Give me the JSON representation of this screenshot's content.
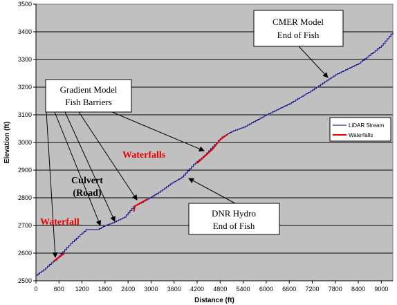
{
  "chart_data": {
    "type": "line",
    "xlabel": "Distance (ft)",
    "ylabel": "Elevation (ft)",
    "xlim": [
      0,
      9300
    ],
    "ylim": [
      2500,
      3500
    ],
    "x_ticks": [
      "0",
      "600",
      "1200",
      "1800",
      "2400",
      "3000",
      "3600",
      "4200",
      "4800",
      "5400",
      "6000",
      "6600",
      "7200",
      "7800",
      "8400",
      "9000"
    ],
    "y_ticks": [
      "2500",
      "2600",
      "2700",
      "2800",
      "2900",
      "3000",
      "3100",
      "3200",
      "3300",
      "3400",
      "3500"
    ],
    "grid": "horizontal",
    "legend_position": "right",
    "legend": [
      {
        "name": "LiDAR Stream",
        "color": "#00008b"
      },
      {
        "name": "Waterfalls",
        "color": "#e60000"
      }
    ],
    "series": [
      {
        "name": "LiDAR Stream",
        "color": "#00008b",
        "x": [
          0,
          200,
          400,
          500,
          700,
          900,
          1100,
          1300,
          1320,
          1600,
          1800,
          2000,
          2300,
          2550,
          2700,
          2900,
          3200,
          3500,
          3800,
          4100,
          4400,
          4700,
          4850,
          5100,
          5400,
          6000,
          6600,
          7200,
          7800,
          8400,
          9000,
          9300
        ],
        "y": [
          2520,
          2540,
          2565,
          2575,
          2605,
          2635,
          2660,
          2685,
          2685,
          2685,
          2700,
          2710,
          2730,
          2770,
          2780,
          2795,
          2820,
          2850,
          2875,
          2920,
          2955,
          3000,
          3020,
          3040,
          3055,
          3100,
          3140,
          3190,
          3245,
          3285,
          3350,
          3400
        ]
      },
      {
        "name": "Waterfalls",
        "color": "#e60000",
        "segments": [
          {
            "x": [
              450,
              550,
              650,
              750
            ],
            "y": [
              2570,
              2580,
              2590,
              2600
            ]
          },
          {
            "x": [
              2550,
              2580,
              2700,
              2900
            ],
            "y": [
              2750,
              2770,
              2780,
              2795
            ]
          },
          {
            "x": [
              4200,
              4400,
              4600,
              4800,
              5000
            ],
            "y": [
              2925,
              2950,
              2975,
              3010,
              3030
            ]
          }
        ]
      }
    ],
    "annotations": {
      "cmer": [
        "CMER Model",
        "End of Fish"
      ],
      "gradient": [
        "Gradient Model",
        "Fish Barriers"
      ],
      "dnr": [
        "DNR Hydro",
        "End of Fish"
      ],
      "waterfalls": "Waterfalls",
      "culvert": [
        "Culvert",
        "(Road)"
      ],
      "waterfall": "Waterfall"
    }
  }
}
